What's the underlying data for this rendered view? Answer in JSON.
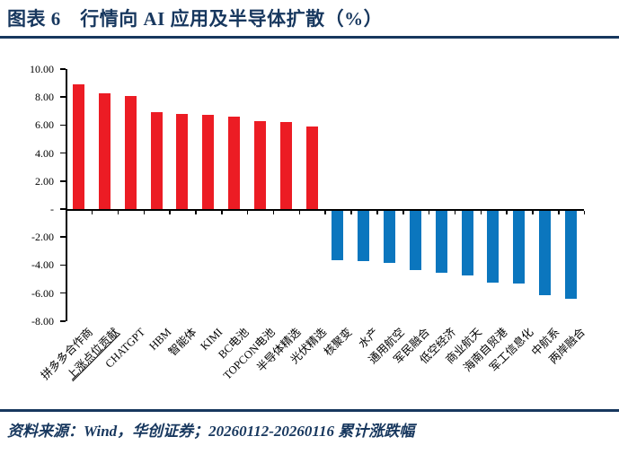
{
  "header": {
    "title": "图表 6　行情向 AI 应用及半导体扩散（%）"
  },
  "footer": {
    "source": "资料来源：Wind，华创证券；20260112-20260116 累计涨跌幅"
  },
  "colors": {
    "accent_navy": "#17375E",
    "positive_bar": "#EC1C24",
    "negative_bar": "#0B76BE",
    "axis": "#000000"
  },
  "chart_data": {
    "type": "bar",
    "title": "行情向AI应用及半导体扩散（%）",
    "categories": [
      "拼多多合作商",
      "上涨点位贡献",
      "CHATGPT",
      "HBM",
      "智能体",
      "KIMI",
      "BC电池",
      "TOPCON电池",
      "半导体精选",
      "光伏精选",
      "核聚变",
      "水产",
      "通用航空",
      "军民融合",
      "低空经济",
      "商业航天",
      "海南自贸港",
      "军工信息化",
      "中航系",
      "两岸融合"
    ],
    "values": [
      8.9,
      8.3,
      8.1,
      6.9,
      6.8,
      6.7,
      6.6,
      6.3,
      6.2,
      5.9,
      -3.5,
      -3.6,
      -3.7,
      -4.2,
      -4.4,
      -4.6,
      -5.1,
      -5.2,
      -6.0,
      -6.3
    ],
    "underlined_categories": [
      "上涨点位贡献"
    ],
    "xlabel": "",
    "ylabel": "",
    "ylim": [
      -8,
      10
    ],
    "ytick_step": 2,
    "ytick_labels": [
      "10.00",
      "8.00",
      "6.00",
      "4.00",
      "2.00",
      "-",
      "-2.00",
      "-4.00",
      "-6.00",
      "-8.00"
    ],
    "zero_label": "-",
    "grid": false,
    "legend": "none",
    "positive_color": "#EC1C24",
    "negative_color": "#0B76BE",
    "x_labels_rotation_deg": 45
  }
}
